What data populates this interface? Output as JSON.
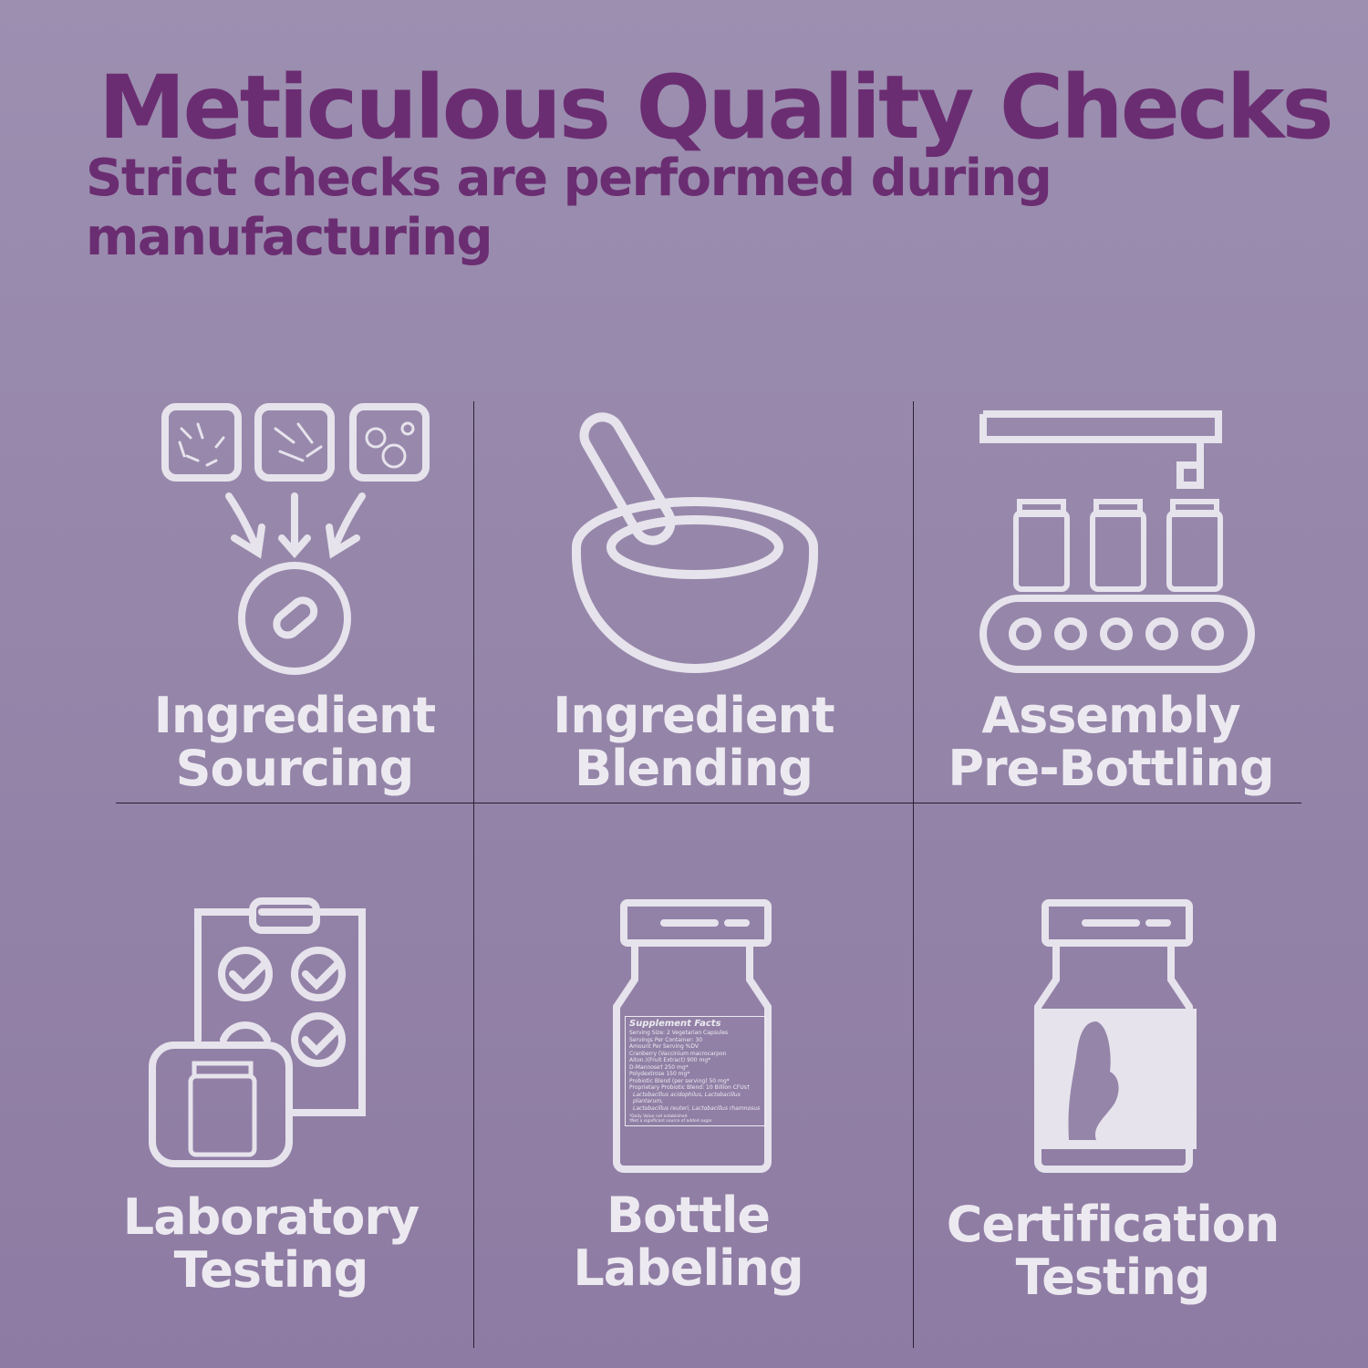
{
  "header": {
    "title": "Meticulous Quality Checks",
    "subtitle": "Strict checks are performed during manufacturing"
  },
  "steps": [
    {
      "line1": "Ingredient",
      "line2": "Sourcing",
      "icon": "ingredients-to-capsule-icon"
    },
    {
      "line1": "Ingredient",
      "line2": "Blending",
      "icon": "mixing-bowl-icon"
    },
    {
      "line1": "Assembly",
      "line2": "Pre-Bottling",
      "icon": "conveyor-bottling-icon"
    },
    {
      "line1": "Laboratory",
      "line2": "Testing",
      "icon": "clipboard-checks-icon"
    },
    {
      "line1": "Bottle",
      "line2": "Labeling",
      "icon": "labeled-bottle-icon"
    },
    {
      "line1": "Certification",
      "line2": "Testing",
      "icon": "certified-bottle-icon"
    }
  ],
  "supplement_label": {
    "title": "Supplement Facts",
    "lines": [
      "Serving Size: 2 Vegetarian Capsules",
      "Servings Per Container: 30",
      "Amount Per Serving    %DV",
      "Cranberry (Vaccinium macrocarpon",
      "Aiton.)(Fruit Extract)   900 mg*",
      "D-Mannose†   250 mg*",
      "Polydextrose   150 mg*",
      "Probiotic Blend (per serving)   50 mg*",
      "Proprietary Probiotic Blend: 10 Billion CFUs†",
      "Lactobacillus acidophilus, Lactobacillus plantarum,",
      "Lactobacillus reuteri, Lactobacillus rhamnosus",
      "*Daily Value not established",
      "†Not a significant source of added sugar"
    ]
  },
  "colors": {
    "title": "#6b2d72",
    "icon": "#e6e3ec",
    "background": "#9585a9"
  }
}
